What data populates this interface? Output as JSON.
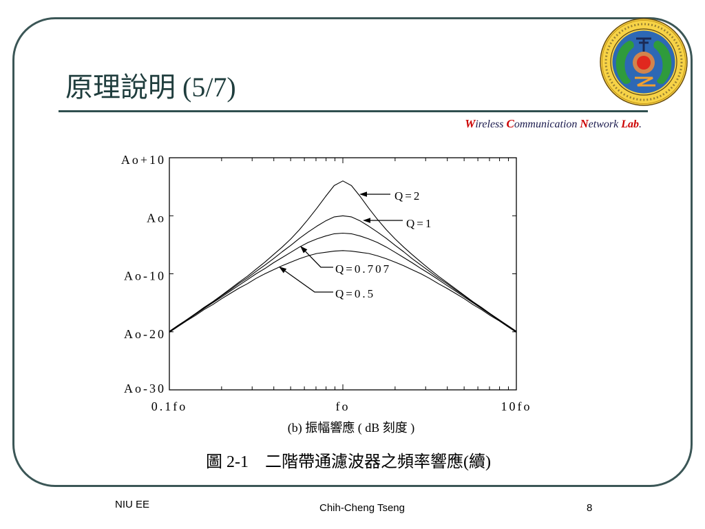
{
  "slide": {
    "title": "原理說明 (5/7)",
    "lab_name": [
      "W",
      "ireless ",
      "C",
      "ommunication ",
      "N",
      "etwork ",
      "Lab",
      "."
    ],
    "subfigure_caption": "(b) 振幅響應 ( dB 刻度 )",
    "figure_caption": "圖 2-1　二階帶通濾波器之頻率響應(續)"
  },
  "footer": {
    "left": "NIU EE",
    "center": "Chih-Cheng Tseng",
    "page_number": "8"
  },
  "logo": {
    "icon": "university-emblem-icon"
  },
  "colors": {
    "frame": "#3b5656",
    "title": "#1f3d3d",
    "lab_initials": "#cc0000",
    "lab_text": "#1a1a4d",
    "curves": "#000000"
  },
  "chart_data": {
    "type": "line",
    "x_scale": "log",
    "xlim": [
      0.1,
      10
    ],
    "ylim": [
      -30,
      10
    ],
    "grid": false,
    "title": "",
    "xlabel": "",
    "ylabel": "",
    "x_ticks": [
      {
        "value": 0.1,
        "label": "0.1fo"
      },
      {
        "value": 1,
        "label": "fo"
      },
      {
        "value": 10,
        "label": "10fo"
      }
    ],
    "y_ticks": [
      {
        "value": 10,
        "label": "Ao+10"
      },
      {
        "value": 0,
        "label": "Ao"
      },
      {
        "value": -10,
        "label": "Ao-10"
      },
      {
        "value": -20,
        "label": "Ao-20"
      },
      {
        "value": -30,
        "label": "Ao-30"
      }
    ],
    "x": [
      0.1,
      0.112,
      0.126,
      0.141,
      0.158,
      0.178,
      0.2,
      0.224,
      0.251,
      0.282,
      0.316,
      0.355,
      0.398,
      0.447,
      0.501,
      0.562,
      0.631,
      0.708,
      0.794,
      0.891,
      1,
      1.12,
      1.26,
      1.41,
      1.58,
      1.78,
      2,
      2.24,
      2.51,
      2.82,
      3.16,
      3.55,
      3.98,
      4.47,
      5.01,
      5.62,
      6.31,
      7.08,
      7.94,
      8.91,
      10
    ],
    "series": [
      {
        "name": "Q=2",
        "values": [
          -19.9,
          -18.9,
          -17.9,
          -16.9,
          -15.8,
          -14.8,
          -13.7,
          -12.6,
          -11.5,
          -10.4,
          -9.2,
          -8.0,
          -6.7,
          -5.4,
          -4.0,
          -2.4,
          -0.6,
          1.3,
          3.3,
          5.2,
          6.0,
          5.2,
          3.3,
          1.3,
          -0.6,
          -2.4,
          -4.0,
          -5.4,
          -6.7,
          -8.0,
          -9.2,
          -10.4,
          -11.5,
          -12.6,
          -13.7,
          -14.8,
          -15.8,
          -16.9,
          -17.9,
          -18.9,
          -19.9
        ]
      },
      {
        "name": "Q=1",
        "values": [
          -20.0,
          -19.0,
          -17.9,
          -16.9,
          -15.9,
          -14.9,
          -13.8,
          -12.8,
          -11.7,
          -10.7,
          -9.6,
          -8.5,
          -7.4,
          -6.2,
          -5.1,
          -3.9,
          -2.8,
          -1.8,
          -0.9,
          -0.2,
          0.0,
          -0.2,
          -0.9,
          -1.8,
          -2.8,
          -3.9,
          -5.1,
          -6.2,
          -7.4,
          -8.5,
          -9.6,
          -10.7,
          -11.7,
          -12.8,
          -13.8,
          -14.9,
          -15.9,
          -16.9,
          -17.9,
          -19.0,
          -20.0
        ]
      },
      {
        "name": "Q=0.707",
        "values": [
          -20.0,
          -19.0,
          -18.0,
          -17.0,
          -16.0,
          -15.0,
          -14.0,
          -13.0,
          -12.0,
          -11.0,
          -10.0,
          -9.1,
          -8.1,
          -7.2,
          -6.3,
          -5.4,
          -4.6,
          -4.0,
          -3.5,
          -3.1,
          -3.0,
          -3.1,
          -3.5,
          -4.0,
          -4.6,
          -5.4,
          -6.3,
          -7.2,
          -8.1,
          -9.1,
          -10.0,
          -11.0,
          -12.0,
          -13.0,
          -14.0,
          -15.0,
          -16.0,
          -17.0,
          -18.0,
          -19.0,
          -20.0
        ]
      },
      {
        "name": "Q=0.5",
        "values": [
          -20.1,
          -19.1,
          -18.1,
          -17.2,
          -16.2,
          -15.3,
          -14.3,
          -13.4,
          -12.5,
          -11.7,
          -10.8,
          -10.0,
          -9.3,
          -8.6,
          -8.0,
          -7.4,
          -6.9,
          -6.5,
          -6.3,
          -6.1,
          -6.0,
          -6.1,
          -6.3,
          -6.5,
          -6.9,
          -7.4,
          -8.0,
          -8.6,
          -9.3,
          -10.0,
          -10.8,
          -11.7,
          -12.5,
          -13.4,
          -14.3,
          -15.3,
          -16.2,
          -17.2,
          -18.1,
          -19.1,
          -20.1
        ]
      }
    ]
  }
}
